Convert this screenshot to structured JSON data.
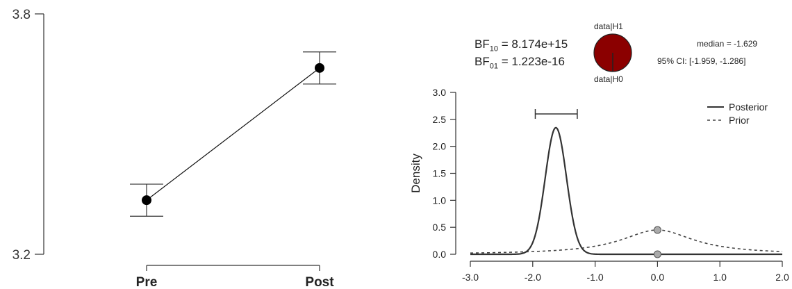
{
  "chart_data": [
    {
      "type": "line",
      "categories": [
        "Pre",
        "Post"
      ],
      "values": [
        3.335,
        3.665
      ],
      "error_low": [
        3.295,
        3.625
      ],
      "error_high": [
        3.375,
        3.705
      ],
      "ylim": [
        3.2,
        3.8
      ],
      "yticks": [
        "3.8",
        "3.2"
      ],
      "xlabel": "",
      "ylabel": "",
      "title": ""
    },
    {
      "type": "line",
      "ylabel": "Density",
      "xlabel": "",
      "xlim": [
        -3.0,
        2.0
      ],
      "ylim": [
        0.0,
        3.0
      ],
      "xticks": [
        "-3.0",
        "-2.0",
        "-1.0",
        "0.0",
        "1.0",
        "2.0"
      ],
      "yticks": [
        "0.0",
        "0.5",
        "1.0",
        "1.5",
        "2.0",
        "2.5",
        "3.0"
      ],
      "series": [
        {
          "name": "Posterior",
          "style": "solid",
          "distribution": "normal",
          "mean": -1.629,
          "sd": 0.17
        },
        {
          "name": "Prior",
          "style": "dashed",
          "distribution": "cauchy",
          "location": 0.0,
          "scale": 0.707
        }
      ],
      "credible_interval": [
        -1.959,
        -1.286
      ],
      "points": [
        {
          "x": 0.0,
          "y": 0.45
        },
        {
          "x": 0.0,
          "y": 0.0
        }
      ],
      "legend_position": "top-right"
    }
  ],
  "stats": {
    "bf10_label": "BF",
    "bf10_sub": "10",
    "bf10_value": " = 8.174e+15",
    "bf01_label": "BF",
    "bf01_sub": "01",
    "bf01_value": " = 1.223e-16",
    "pie_top": "data|H1",
    "pie_bottom": "data|H0",
    "pie_h1_share": 1.0,
    "median": "median = -1.629",
    "ci": "95% CI: [-1.959, -1.286]"
  },
  "colors": {
    "pie_fill": "#8b0000",
    "points": "#000000",
    "prior_points": "#aaaaaa",
    "lines": "#333333"
  }
}
